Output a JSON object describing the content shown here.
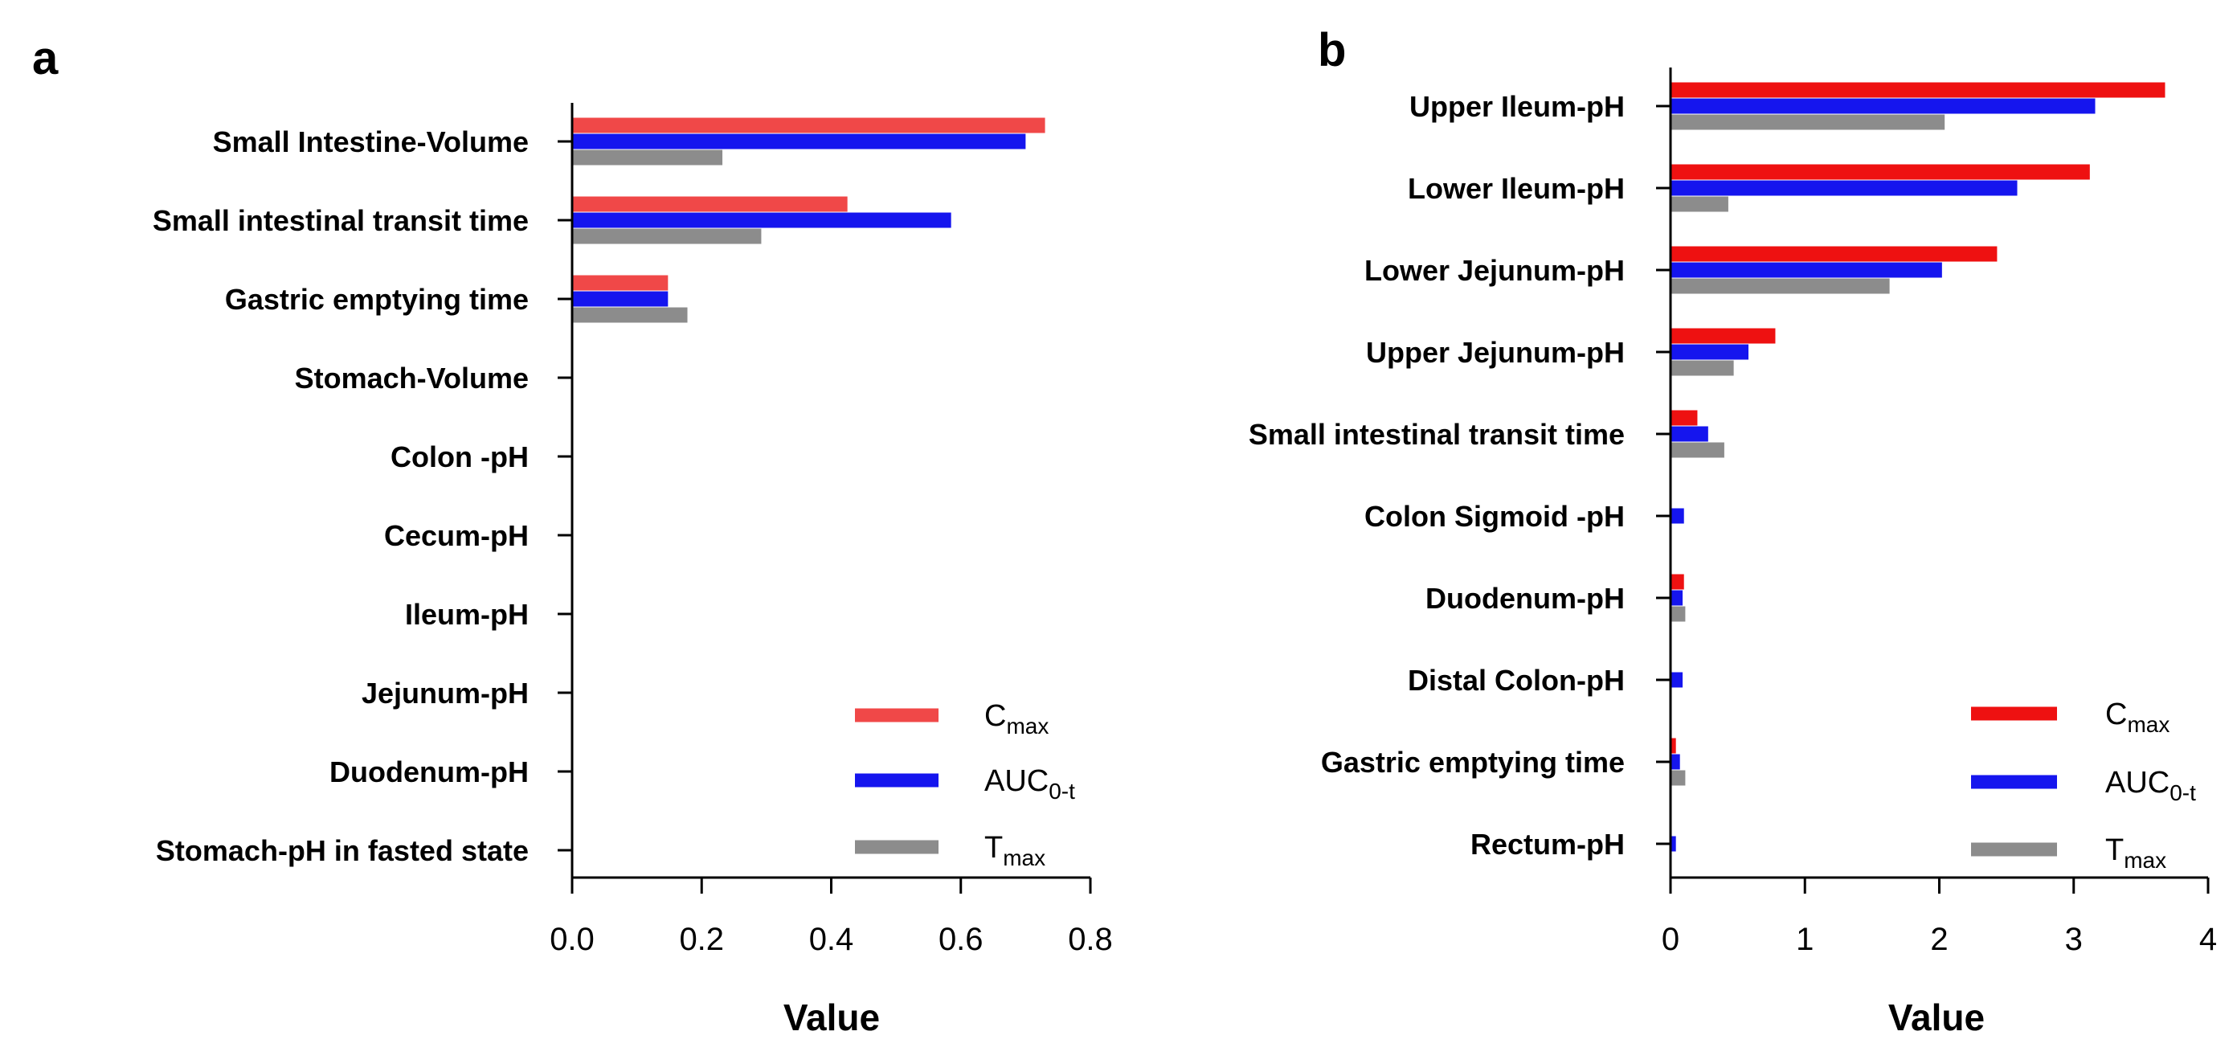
{
  "chart_data": [
    {
      "panel": "a",
      "type": "bar",
      "orientation": "horizontal",
      "xlabel": "Value",
      "xlim": [
        0,
        0.8
      ],
      "xticks": [
        "0.0",
        "0.2",
        "0.4",
        "0.6",
        "0.8"
      ],
      "xtick_values": [
        0,
        0.2,
        0.4,
        0.6,
        0.8
      ],
      "categories": [
        "Small Intestine-Volume",
        "Small intestinal transit time",
        "Gastric emptying time",
        "Stomach-Volume",
        "Colon -pH",
        "Cecum-pH",
        "Ileum-pH",
        "Jejunum-pH",
        "Duodenum-pH",
        "Stomach-pH in fasted state"
      ],
      "series": [
        {
          "name": "Cmax",
          "label_main": "C",
          "label_sub": "max",
          "color": "#f04848",
          "values": [
            0.73,
            0.425,
            0.148,
            0,
            0,
            0,
            0,
            0,
            0,
            0
          ]
        },
        {
          "name": "AUC0-t",
          "label_main": "AUC",
          "label_sub": "0-t",
          "color": "#1515ee",
          "values": [
            0.7,
            0.585,
            0.148,
            0,
            0,
            0,
            0,
            0,
            0,
            0
          ]
        },
        {
          "name": "Tmax",
          "label_main": "T",
          "label_sub": "max",
          "color": "#8c8c8c",
          "values": [
            0.232,
            0.292,
            0.178,
            0,
            0,
            0,
            0,
            0,
            0,
            0
          ]
        }
      ],
      "legend": "bottom-right"
    },
    {
      "panel": "b",
      "type": "bar",
      "orientation": "horizontal",
      "xlabel": "Value",
      "xlim": [
        0,
        4
      ],
      "xticks": [
        "0",
        "1",
        "2",
        "3",
        "4"
      ],
      "xtick_values": [
        0,
        1,
        2,
        3,
        4
      ],
      "categories": [
        "Upper Ileum-pH",
        "Lower Ileum-pH",
        "Lower Jejunum-pH",
        "Upper Jejunum-pH",
        "Small intestinal transit time",
        "Colon Sigmoid -pH",
        "Duodenum-pH",
        "Distal Colon-pH",
        "Gastric emptying time",
        "Rectum-pH"
      ],
      "series": [
        {
          "name": "Cmax",
          "label_main": "C",
          "label_sub": "max",
          "color": "#ee1111",
          "values": [
            3.68,
            3.12,
            2.43,
            0.78,
            0.2,
            0,
            0.1,
            0,
            0.04,
            0
          ]
        },
        {
          "name": "AUC0-t",
          "label_main": "AUC",
          "label_sub": "0-t",
          "color": "#1515ee",
          "values": [
            3.16,
            2.58,
            2.02,
            0.58,
            0.28,
            0.1,
            0.09,
            0.09,
            0.07,
            0.04
          ]
        },
        {
          "name": "Tmax",
          "label_main": "T",
          "label_sub": "max",
          "color": "#8c8c8c",
          "values": [
            2.04,
            0.43,
            1.63,
            0.47,
            0.4,
            0,
            0.11,
            0,
            0.11,
            0
          ]
        }
      ],
      "legend": "bottom-right"
    }
  ]
}
